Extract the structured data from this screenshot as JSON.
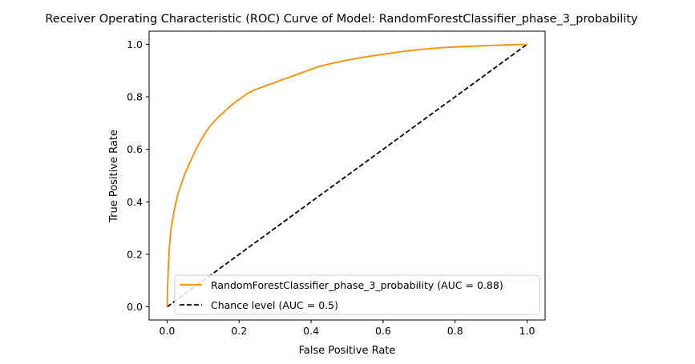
{
  "chart_data": {
    "type": "line",
    "title": "Receiver Operating Characteristic (ROC) Curve of Model: RandomForestClassifier_phase_3_probability",
    "xlabel": "False Positive Rate",
    "ylabel": "True Positive Rate",
    "xlim": [
      -0.05,
      1.05
    ],
    "ylim": [
      -0.05,
      1.05
    ],
    "xticks": [
      0.0,
      0.2,
      0.4,
      0.6,
      0.8,
      1.0
    ],
    "xtick_labels": [
      "0.0",
      "0.2",
      "0.4",
      "0.6",
      "0.8",
      "1.0"
    ],
    "yticks": [
      0.0,
      0.2,
      0.4,
      0.6,
      0.8,
      1.0
    ],
    "ytick_labels": [
      "0.0",
      "0.2",
      "0.4",
      "0.6",
      "0.8",
      "1.0"
    ],
    "grid": false,
    "legend_position": "lower-right",
    "series": [
      {
        "name": "RandomForestClassifier_phase_3_probability (AUC = 0.88)",
        "color": "#ff8c00",
        "style": "solid",
        "x": [
          0.0,
          0.001,
          0.002,
          0.004,
          0.006,
          0.008,
          0.01,
          0.015,
          0.02,
          0.03,
          0.04,
          0.05,
          0.06,
          0.07,
          0.08,
          0.09,
          0.1,
          0.12,
          0.14,
          0.16,
          0.18,
          0.2,
          0.22,
          0.24,
          0.26,
          0.28,
          0.3,
          0.33,
          0.36,
          0.39,
          0.42,
          0.45,
          0.5,
          0.55,
          0.6,
          0.65,
          0.7,
          0.75,
          0.8,
          0.85,
          0.9,
          0.95,
          1.0
        ],
        "y": [
          0.0,
          0.05,
          0.1,
          0.17,
          0.22,
          0.26,
          0.29,
          0.33,
          0.37,
          0.43,
          0.47,
          0.51,
          0.54,
          0.57,
          0.6,
          0.625,
          0.65,
          0.69,
          0.72,
          0.745,
          0.77,
          0.79,
          0.81,
          0.825,
          0.835,
          0.845,
          0.855,
          0.87,
          0.885,
          0.9,
          0.915,
          0.925,
          0.94,
          0.952,
          0.962,
          0.972,
          0.98,
          0.986,
          0.99,
          0.993,
          0.996,
          0.998,
          1.0
        ]
      },
      {
        "name": "Chance level (AUC = 0.5)",
        "color": "#000000",
        "style": "dashed",
        "x": [
          0.0,
          1.0
        ],
        "y": [
          0.0,
          1.0
        ]
      }
    ]
  }
}
